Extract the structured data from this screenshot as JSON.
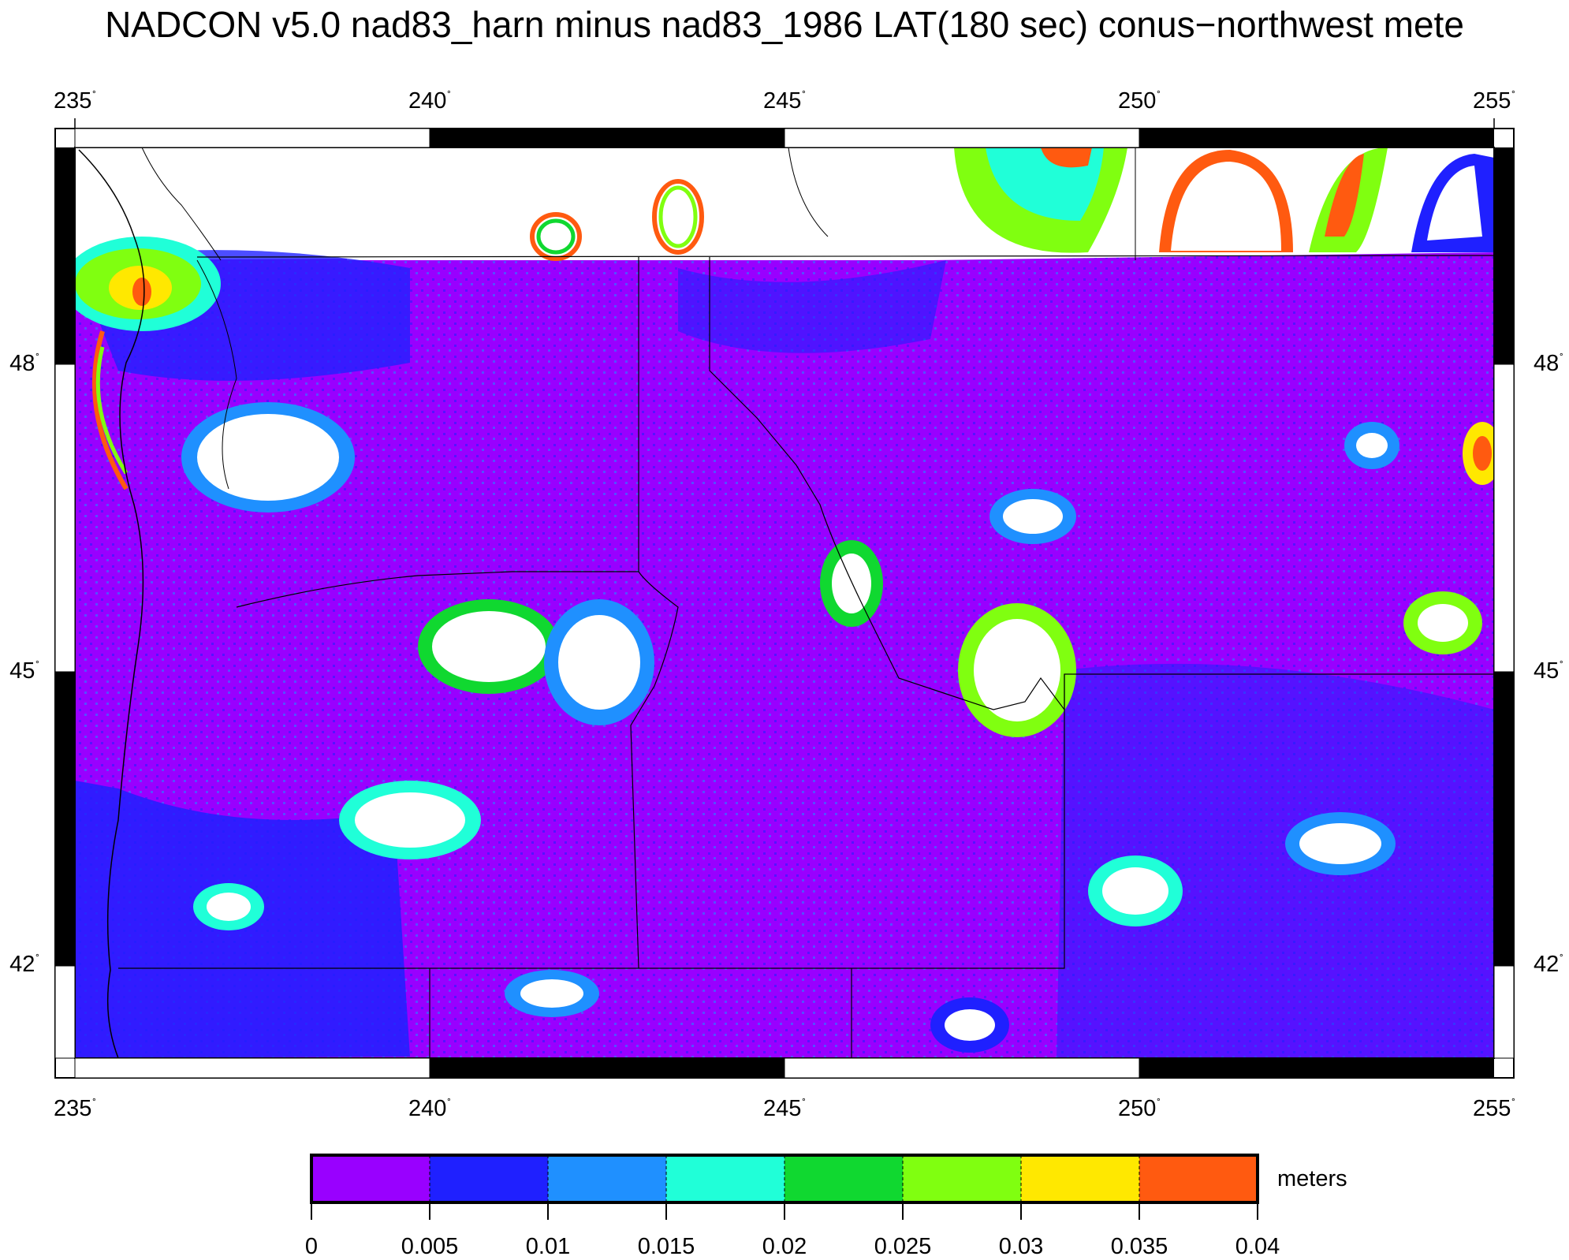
{
  "title": "NADCON v5.0 nad83_harn minus nad83_1986 LAT(180 sec) conus−northwest mete",
  "map": {
    "lon_range": [
      235,
      255
    ],
    "lat_range": [
      40.7,
      49.5
    ],
    "lon_ticks": [
      "235",
      "240",
      "245",
      "250",
      "255"
    ],
    "lat_ticks": [
      "48",
      "45",
      "42"
    ],
    "degree_symbol": "˚"
  },
  "colorbar": {
    "unit_label": "meters",
    "tick_labels": [
      "0",
      "0.005",
      "0.01",
      "0.015",
      "0.02",
      "0.025",
      "0.03",
      "0.035",
      "0.04"
    ],
    "colors": [
      "#9900ff",
      "#1f20ff",
      "#1f90ff",
      "#20ffd8",
      "#10d830",
      "#80ff10",
      "#ffe800",
      "#ff5a10"
    ]
  }
}
